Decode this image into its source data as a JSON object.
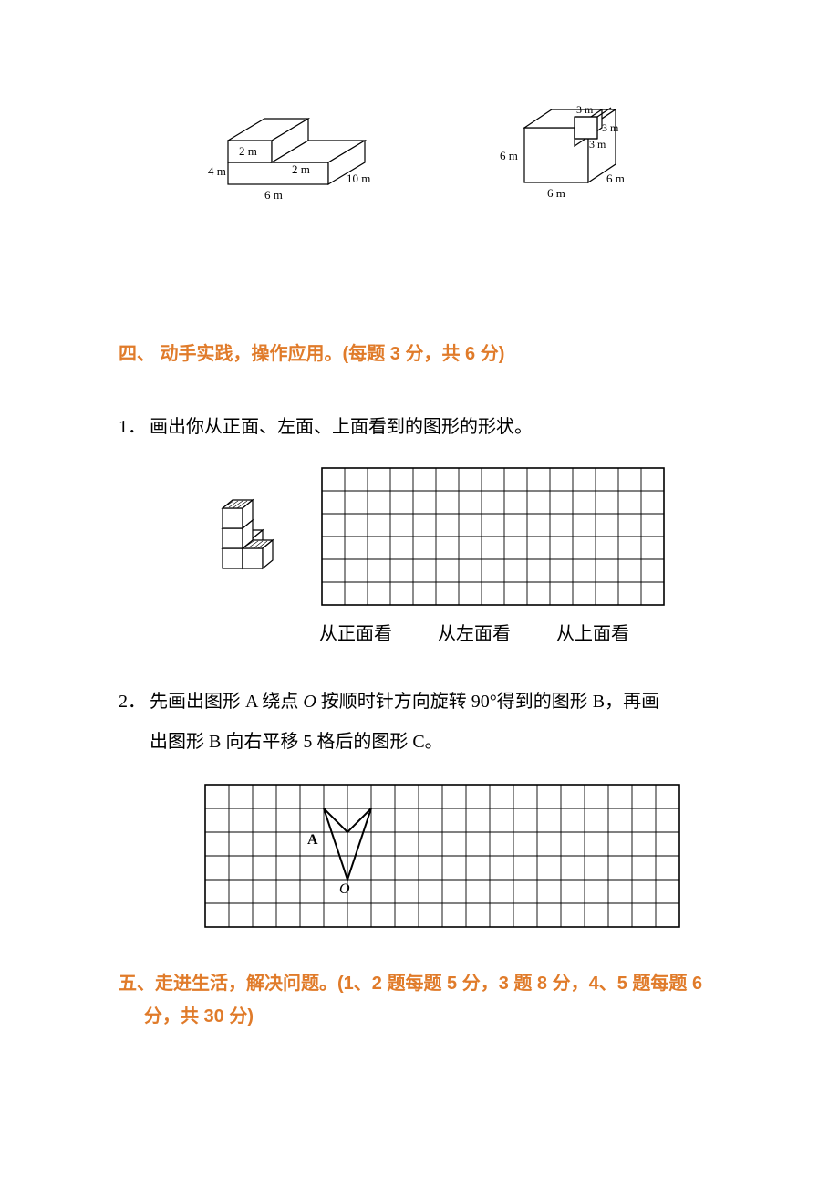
{
  "figures": {
    "left_solid": {
      "labels": {
        "h4": "4 m",
        "h2a": "2 m",
        "h2b": "2 m",
        "w6": "6 m",
        "d10": "10 m"
      },
      "stroke": "#000000",
      "fill": "#ffffff",
      "stroke_width": 1.2
    },
    "right_solid": {
      "labels": {
        "h6": "6 m",
        "t3a": "3 m",
        "t3b": "3 m",
        "t3c": "3 m",
        "b6a": "6 m",
        "b6b": "6 m"
      },
      "stroke": "#000000",
      "fill": "#ffffff",
      "stroke_width": 1.2
    }
  },
  "section4": {
    "heading": "四、 动手实践，操作应用。(每题 3 分，共 6 分)",
    "q1": {
      "num": "1．",
      "text": "画出你从正面、左面、上面看到的图形的形状。"
    },
    "view_grid": {
      "cols": 15,
      "rows": 6,
      "cell": 25,
      "stroke": "#000000",
      "stroke_width": 1,
      "labels": {
        "front": "从正面看",
        "left": "从左面看",
        "top": "从上面看"
      }
    },
    "cubes_figure": {
      "stroke": "#000000",
      "stroke_width": 1.2,
      "hatch_color": "#000000"
    },
    "q2": {
      "num": "2．",
      "line1_a": "先画出图形 A 绕点 ",
      "line1_o": "O",
      "line1_b": " 按顺时针方向旋转 90°得到的图形 B，再画",
      "line2": "出图形 B 向右平移 5 格后的图形 C。"
    },
    "rot_grid": {
      "cols": 20,
      "rows": 6,
      "cell": 26,
      "stroke": "#000000",
      "stroke_width": 1,
      "labelA": "A",
      "labelO": "O",
      "shape": {
        "stroke": "#000000",
        "stroke_width": 2
      }
    }
  },
  "section5": {
    "heading": "五、走进生活，解决问题。(1、2 题每题 5 分，3 题 8 分，4、5 题每题 6 分，共 30 分)"
  },
  "colors": {
    "heading": "#e07b2a",
    "text": "#000000",
    "bg": "#ffffff"
  }
}
